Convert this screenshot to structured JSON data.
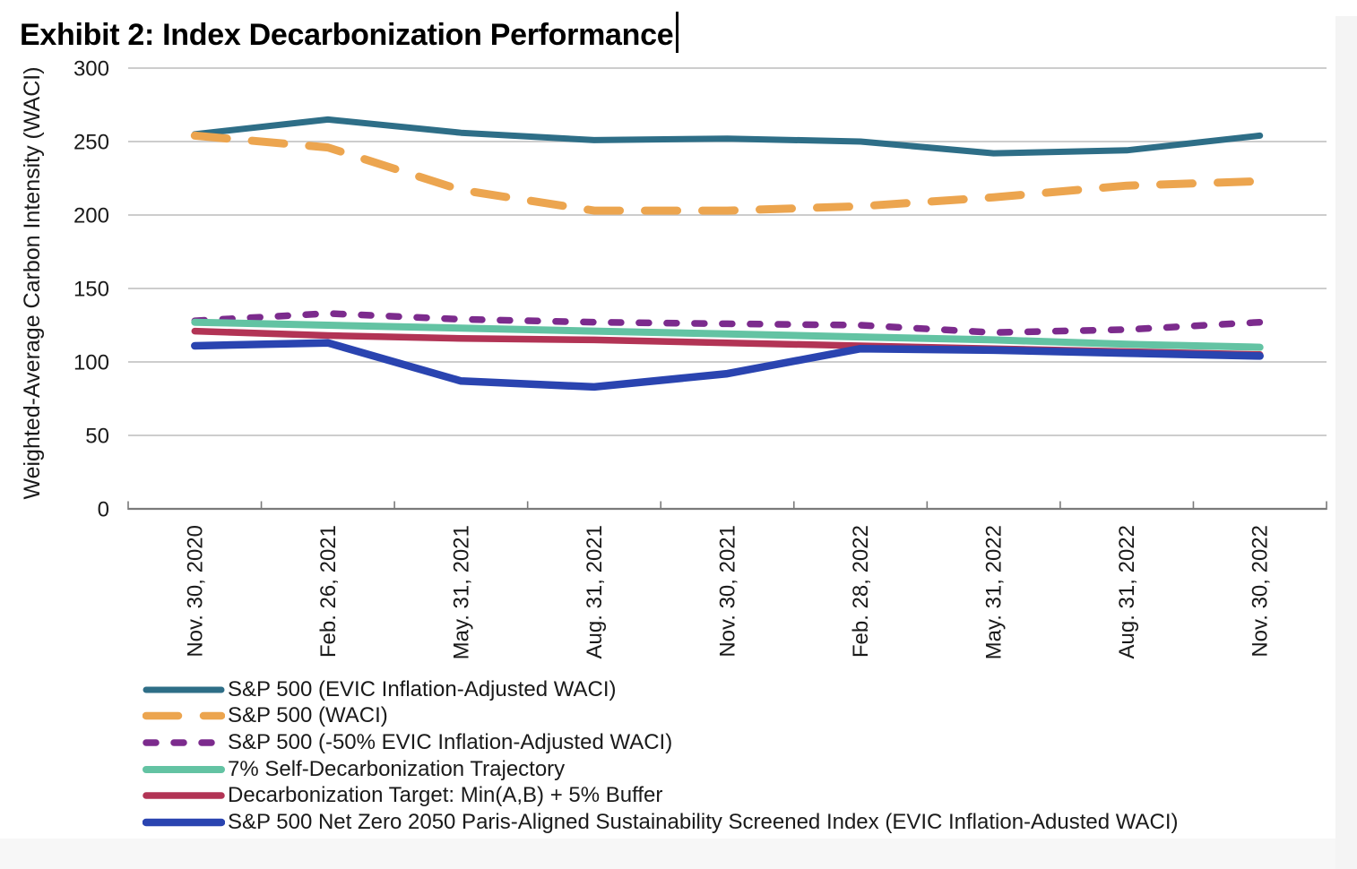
{
  "chart_data": {
    "type": "line",
    "title": "Exhibit 2: Index Decarbonization Performance",
    "xlabel": "",
    "ylabel": "Weighted-Average Carbon Intensity (WACI)",
    "ylim": [
      0,
      300
    ],
    "yticks": [
      0,
      50,
      100,
      150,
      200,
      250,
      300
    ],
    "grid": "horizontal",
    "legend_position": "bottom-left",
    "categories": [
      "Nov. 30, 2020",
      "Feb. 26, 2021",
      "May. 31, 2021",
      "Aug. 31, 2021",
      "Nov. 30, 2021",
      "Feb. 28, 2022",
      "May. 31, 2022",
      "Aug. 31, 2022",
      "Nov. 30, 2022"
    ],
    "series": [
      {
        "name": "S&P 500 (EVIC Inflation-Adjusted WACI)",
        "color": "#2e6e87",
        "style": "solid",
        "width": 7,
        "values": [
          255,
          265,
          256,
          251,
          252,
          250,
          242,
          244,
          254
        ]
      },
      {
        "name": "S&P 500 (WACI)",
        "color": "#eca54f",
        "style": "dashed",
        "width": 9,
        "values": [
          254,
          246,
          217,
          203,
          203,
          206,
          212,
          220,
          223
        ]
      },
      {
        "name": "S&P 500 (-50% EVIC Inflation-Adjusted WACI)",
        "color": "#7c2b8d",
        "style": "dashed-short",
        "width": 7.5,
        "values": [
          128,
          133,
          129,
          127,
          126,
          125,
          120,
          122,
          127
        ]
      },
      {
        "name": "7% Self-Decarbonization Trajectory",
        "color": "#63c3a3",
        "style": "solid",
        "width": 8,
        "values": [
          127,
          125,
          123,
          121,
          119,
          117,
          115,
          112,
          110
        ]
      },
      {
        "name": "Decarbonization Target: Min(A,B) + 5% Buffer",
        "color": "#b23455",
        "style": "solid",
        "width": 7.5,
        "values": [
          121,
          118,
          116,
          115,
          113,
          111,
          109,
          107,
          105
        ]
      },
      {
        "name": "S&P 500 Net Zero 2050 Paris-Aligned Sustainability Screened Index (EVIC Inflation-Adusted WACI)",
        "color": "#2a44b0",
        "style": "solid",
        "width": 8.5,
        "values": [
          111,
          113,
          87,
          83,
          92,
          109,
          108,
          106,
          104
        ]
      }
    ]
  }
}
